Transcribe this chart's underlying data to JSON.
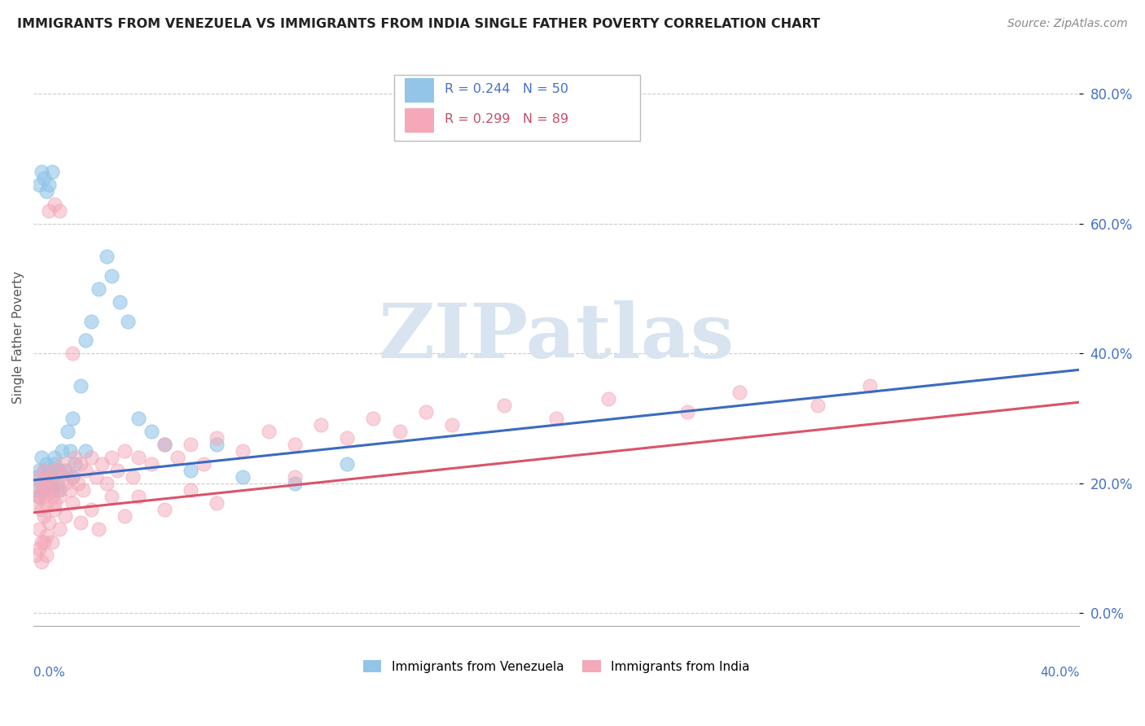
{
  "title": "IMMIGRANTS FROM VENEZUELA VS IMMIGRANTS FROM INDIA SINGLE FATHER POVERTY CORRELATION CHART",
  "source": "Source: ZipAtlas.com",
  "ylabel": "Single Father Poverty",
  "legend_label1": "Immigrants from Venezuela",
  "legend_label2": "Immigrants from India",
  "series1_R": 0.244,
  "series1_N": 50,
  "series2_R": 0.299,
  "series2_N": 89,
  "color1": "#92c5e8",
  "color2": "#f4a8b8",
  "line1_color": "#3a6bbf",
  "line2_color": "#d9546a",
  "watermark_color": "#d8e4f0",
  "xlim": [
    0.0,
    0.4
  ],
  "ylim": [
    -0.02,
    0.87
  ],
  "yticks": [
    0.0,
    0.2,
    0.4,
    0.6,
    0.8
  ],
  "venezuela_x": [
    0.001,
    0.001,
    0.002,
    0.002,
    0.003,
    0.003,
    0.004,
    0.004,
    0.005,
    0.005,
    0.006,
    0.006,
    0.007,
    0.007,
    0.008,
    0.009,
    0.01,
    0.01,
    0.011,
    0.012,
    0.013,
    0.014,
    0.015,
    0.016,
    0.018,
    0.02,
    0.022,
    0.025,
    0.028,
    0.03,
    0.033,
    0.036,
    0.04,
    0.045,
    0.05,
    0.06,
    0.07,
    0.08,
    0.1,
    0.12,
    0.002,
    0.003,
    0.004,
    0.005,
    0.006,
    0.007,
    0.008,
    0.01,
    0.015,
    0.02
  ],
  "venezuela_y": [
    0.21,
    0.19,
    0.22,
    0.18,
    0.24,
    0.2,
    0.22,
    0.19,
    0.21,
    0.23,
    0.2,
    0.22,
    0.19,
    0.21,
    0.23,
    0.2,
    0.22,
    0.19,
    0.25,
    0.22,
    0.28,
    0.25,
    0.3,
    0.23,
    0.35,
    0.42,
    0.45,
    0.5,
    0.55,
    0.52,
    0.48,
    0.45,
    0.3,
    0.28,
    0.26,
    0.22,
    0.26,
    0.21,
    0.2,
    0.23,
    0.66,
    0.68,
    0.67,
    0.65,
    0.66,
    0.68,
    0.24,
    0.22,
    0.21,
    0.25
  ],
  "india_x": [
    0.001,
    0.001,
    0.002,
    0.002,
    0.003,
    0.003,
    0.004,
    0.004,
    0.005,
    0.005,
    0.006,
    0.006,
    0.007,
    0.007,
    0.008,
    0.008,
    0.009,
    0.01,
    0.01,
    0.011,
    0.012,
    0.013,
    0.014,
    0.015,
    0.016,
    0.017,
    0.018,
    0.019,
    0.02,
    0.022,
    0.024,
    0.026,
    0.028,
    0.03,
    0.032,
    0.035,
    0.038,
    0.04,
    0.045,
    0.05,
    0.055,
    0.06,
    0.065,
    0.07,
    0.08,
    0.09,
    0.1,
    0.11,
    0.12,
    0.13,
    0.14,
    0.15,
    0.16,
    0.18,
    0.2,
    0.22,
    0.25,
    0.27,
    0.3,
    0.32,
    0.002,
    0.003,
    0.004,
    0.005,
    0.006,
    0.007,
    0.008,
    0.01,
    0.012,
    0.015,
    0.018,
    0.022,
    0.025,
    0.03,
    0.035,
    0.04,
    0.05,
    0.06,
    0.07,
    0.1,
    0.001,
    0.002,
    0.003,
    0.004,
    0.005,
    0.006,
    0.008,
    0.01,
    0.015
  ],
  "india_y": [
    0.19,
    0.17,
    0.21,
    0.18,
    0.2,
    0.16,
    0.22,
    0.18,
    0.2,
    0.17,
    0.19,
    0.21,
    0.18,
    0.2,
    0.17,
    0.22,
    0.19,
    0.21,
    0.18,
    0.23,
    0.2,
    0.22,
    0.19,
    0.21,
    0.24,
    0.2,
    0.23,
    0.19,
    0.22,
    0.24,
    0.21,
    0.23,
    0.2,
    0.24,
    0.22,
    0.25,
    0.21,
    0.24,
    0.23,
    0.26,
    0.24,
    0.26,
    0.23,
    0.27,
    0.25,
    0.28,
    0.26,
    0.29,
    0.27,
    0.3,
    0.28,
    0.31,
    0.29,
    0.32,
    0.3,
    0.33,
    0.31,
    0.34,
    0.32,
    0.35,
    0.13,
    0.11,
    0.15,
    0.12,
    0.14,
    0.11,
    0.16,
    0.13,
    0.15,
    0.17,
    0.14,
    0.16,
    0.13,
    0.18,
    0.15,
    0.18,
    0.16,
    0.19,
    0.17,
    0.21,
    0.09,
    0.1,
    0.08,
    0.11,
    0.09,
    0.62,
    0.63,
    0.62,
    0.4
  ],
  "line1_x0": 0.0,
  "line1_x1": 0.4,
  "line1_y0": 0.205,
  "line1_y1": 0.375,
  "line2_x0": 0.0,
  "line2_x1": 0.4,
  "line2_y0": 0.155,
  "line2_y1": 0.325
}
